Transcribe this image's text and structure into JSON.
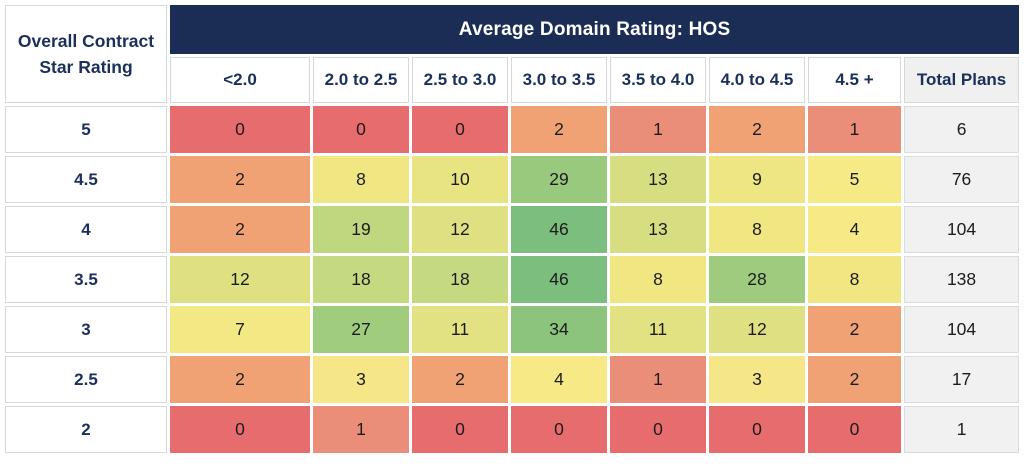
{
  "table": {
    "banner": "Average Domain Rating: HOS",
    "corner_line1": "Overall Contract",
    "corner_line2": "Star Rating",
    "columns": [
      "<2.0",
      "2.0 to 2.5",
      "2.5 to 3.0",
      "3.0 to 3.5",
      "3.5 to 4.0",
      "4.0 to 4.5",
      "4.5 +"
    ],
    "total_header": "Total Plans",
    "rows": [
      {
        "label": "5",
        "values": [
          0,
          0,
          0,
          2,
          1,
          2,
          1
        ],
        "total": 6
      },
      {
        "label": "4.5",
        "values": [
          2,
          8,
          10,
          29,
          13,
          9,
          5
        ],
        "total": 76
      },
      {
        "label": "4",
        "values": [
          2,
          19,
          12,
          46,
          13,
          8,
          4
        ],
        "total": 104
      },
      {
        "label": "3.5",
        "values": [
          12,
          18,
          18,
          46,
          8,
          28,
          8
        ],
        "total": 138
      },
      {
        "label": "3",
        "values": [
          7,
          27,
          11,
          34,
          11,
          12,
          2
        ],
        "total": 104
      },
      {
        "label": "2.5",
        "values": [
          2,
          3,
          2,
          4,
          1,
          3,
          2
        ],
        "total": 17
      },
      {
        "label": "2",
        "values": [
          0,
          1,
          0,
          0,
          0,
          0,
          0
        ],
        "total": 1
      }
    ],
    "value_colors": {
      "0": "#E76C6E",
      "1": "#EA8E79",
      "2": "#F0A275",
      "3": "#F5E787",
      "4": "#F6E986",
      "5": "#F6EA86",
      "7": "#F2E884",
      "8": "#F0E783",
      "9": "#EEE683",
      "10": "#E8E482",
      "11": "#E3E282",
      "12": "#DEE081",
      "13": "#D6DE81",
      "18": "#C5D980",
      "19": "#BFD77F",
      "27": "#A0CC7E",
      "28": "#9ECB7E",
      "29": "#99C97D",
      "34": "#8CC47D",
      "46": "#7CBE7E"
    }
  },
  "colors": {
    "banner_bg": "#1B2D55",
    "banner_text": "#FFFFFF",
    "header_text": "#1B2F5B",
    "cell_text": "#1C1C1C",
    "total_col_bg": "#F1F1F2",
    "grid_border": "#D8D8D8",
    "heat_min": "#E76C6E",
    "heat_mid": "#F5E787",
    "heat_max": "#7CBE7E"
  },
  "chart_data": {
    "type": "heatmap",
    "title": "Average Domain Rating: HOS",
    "xlabel": "Average Domain Rating: HOS",
    "ylabel": "Overall Contract Star Rating",
    "x_categories": [
      "<2.0",
      "2.0 to 2.5",
      "2.5 to 3.0",
      "3.0 to 3.5",
      "3.5 to 4.0",
      "4.0 to 4.5",
      "4.5 +"
    ],
    "y_categories": [
      "5",
      "4.5",
      "4",
      "3.5",
      "3",
      "2.5",
      "2"
    ],
    "values": [
      [
        0,
        0,
        0,
        2,
        1,
        2,
        1
      ],
      [
        2,
        8,
        10,
        29,
        13,
        9,
        5
      ],
      [
        2,
        19,
        12,
        46,
        13,
        8,
        4
      ],
      [
        12,
        18,
        18,
        46,
        8,
        28,
        8
      ],
      [
        7,
        27,
        11,
        34,
        11,
        12,
        2
      ],
      [
        2,
        3,
        2,
        4,
        1,
        3,
        2
      ],
      [
        0,
        1,
        0,
        0,
        0,
        0,
        0
      ]
    ],
    "row_totals_label": "Total Plans",
    "row_totals": [
      6,
      76,
      104,
      138,
      104,
      17,
      1
    ],
    "value_range": [
      0,
      46
    ],
    "colorscale": [
      "#E76C6E",
      "#F5E787",
      "#7CBE7E"
    ],
    "legend": "none",
    "grid": "white gaps between cells"
  }
}
